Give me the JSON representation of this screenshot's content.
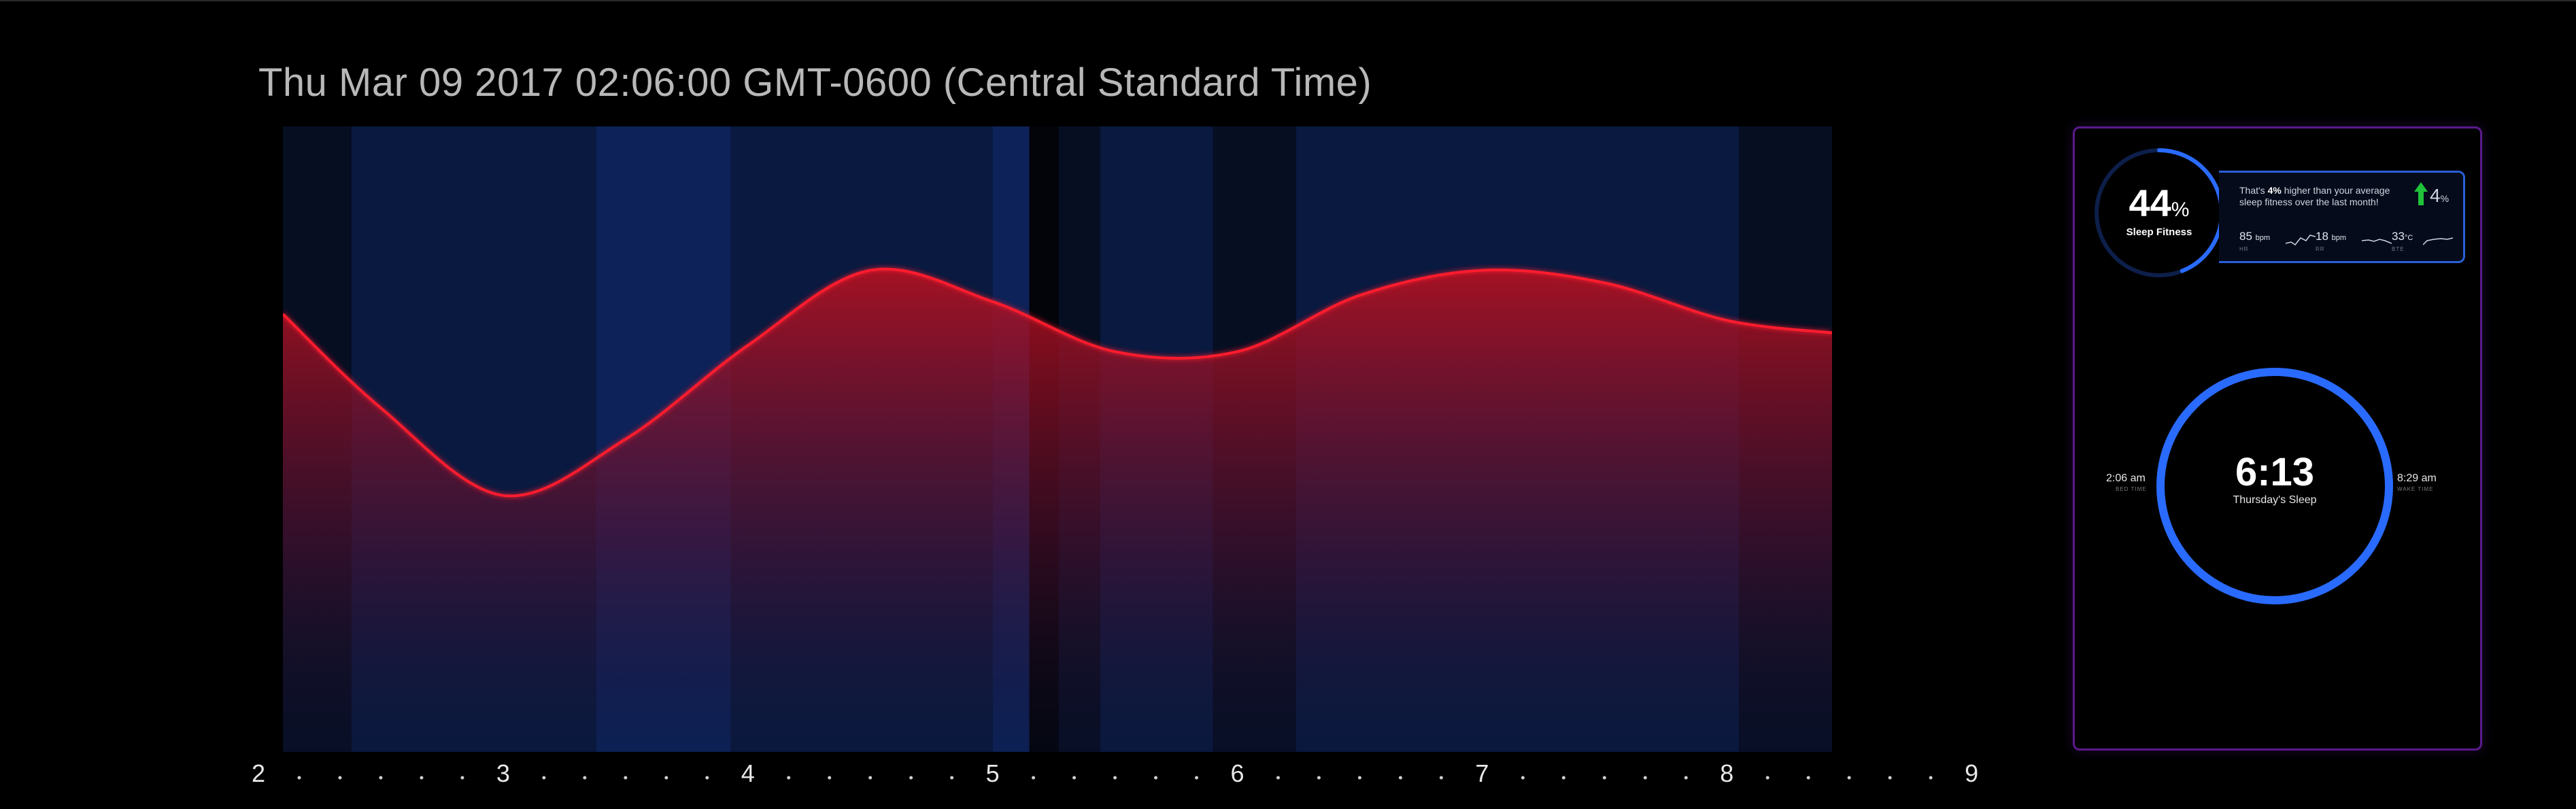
{
  "header": {
    "datetime": "Thu Mar 09 2017 02:06:00 GMT-0600 (Central Standard Time)"
  },
  "colors": {
    "background": "#000000",
    "curve_stroke": "#ff1a2e",
    "band_dark": "#060e22",
    "band_mid": "#09193f",
    "band_light": "#0c2258",
    "ring_blue": "#2a6bff",
    "card_border": "#5a1a8c",
    "trend_up": "#1fc23a"
  },
  "timeline": {
    "labels": [
      "2",
      "3",
      "4",
      "5",
      "6",
      "7",
      "8",
      "9"
    ]
  },
  "chart_data": {
    "type": "area",
    "x": [
      2.1,
      2.5,
      3.0,
      3.5,
      4.0,
      4.5,
      5.0,
      5.5,
      6.0,
      6.5,
      7.0,
      7.5,
      8.0,
      8.43
    ],
    "y": [
      0.7,
      0.55,
      0.41,
      0.5,
      0.65,
      0.77,
      0.72,
      0.64,
      0.64,
      0.73,
      0.77,
      0.75,
      0.69,
      0.67
    ],
    "ylim": [
      0,
      1
    ],
    "xlim": [
      2.1,
      8.43
    ],
    "stage_bands": [
      {
        "x0": 2.1,
        "x1": 2.38,
        "level": "dark"
      },
      {
        "x0": 2.38,
        "x1": 3.38,
        "level": "mid"
      },
      {
        "x0": 3.38,
        "x1": 3.93,
        "level": "light"
      },
      {
        "x0": 3.93,
        "x1": 5.0,
        "level": "mid"
      },
      {
        "x0": 5.0,
        "x1": 5.15,
        "level": "light"
      },
      {
        "x0": 5.15,
        "x1": 5.27,
        "level": "black"
      },
      {
        "x0": 5.27,
        "x1": 5.44,
        "level": "dark"
      },
      {
        "x0": 5.44,
        "x1": 5.9,
        "level": "mid"
      },
      {
        "x0": 5.9,
        "x1": 6.24,
        "level": "dark"
      },
      {
        "x0": 6.24,
        "x1": 8.05,
        "level": "mid"
      },
      {
        "x0": 8.05,
        "x1": 8.43,
        "level": "dark"
      }
    ]
  },
  "summary": {
    "fitness": {
      "value": "44",
      "unit": "%",
      "label": "Sleep Fitness",
      "percent": 44
    },
    "comparison": {
      "text_pre": "That's ",
      "highlight": "4%",
      "text_post": " higher than your average sleep fitness over the last month!",
      "delta_value": "4",
      "delta_unit": "%"
    },
    "stats": [
      {
        "value": "85",
        "unit": "bpm",
        "sub": "HR"
      },
      {
        "value": "18",
        "unit": "bpm",
        "sub": "RR"
      },
      {
        "value": "33",
        "unit": "°C",
        "sub": "BTE"
      }
    ],
    "sleep": {
      "duration": "6:13",
      "label": "Thursday's Sleep",
      "bed_time": "2:06 am",
      "bed_label": "BED TIME",
      "wake_time": "8:29 am",
      "wake_label": "WAKE TIME"
    }
  }
}
